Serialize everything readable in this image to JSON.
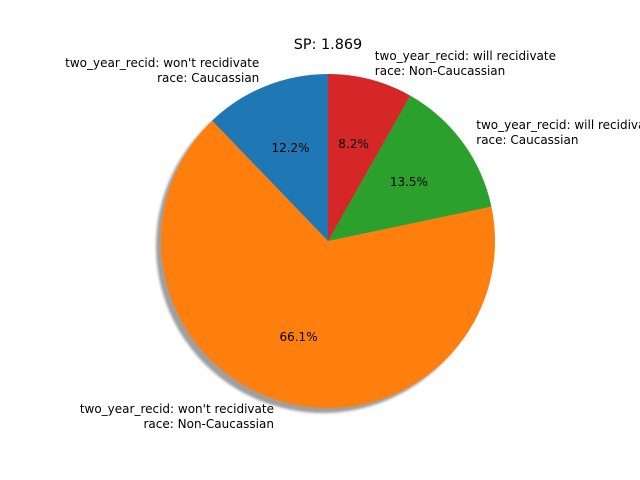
{
  "chart_data": {
    "type": "pie",
    "title": "SP: 1.869",
    "start_angle_deg": 90,
    "direction": "counterclockwise",
    "shadow": true,
    "slices": [
      {
        "label_line1": "two_year_recid: won't recidivate",
        "label_line2": "race: Caucassian",
        "value": 12.2,
        "pct_text": "12.2%",
        "color": "#1f77b4"
      },
      {
        "label_line1": "two_year_recid: won't recidivate",
        "label_line2": "race: Non-Caucassian",
        "value": 66.1,
        "pct_text": "66.1%",
        "color": "#ff7f0e"
      },
      {
        "label_line1": "two_year_recid: will recidivate",
        "label_line2": "race: Caucassian",
        "value": 13.5,
        "pct_text": "13.5%",
        "color": "#2ca02c"
      },
      {
        "label_line1": "two_year_recid: will recidivate",
        "label_line2": "race: Non-Caucassian",
        "value": 8.2,
        "pct_text": "8.2%",
        "color": "#d62728"
      }
    ]
  }
}
